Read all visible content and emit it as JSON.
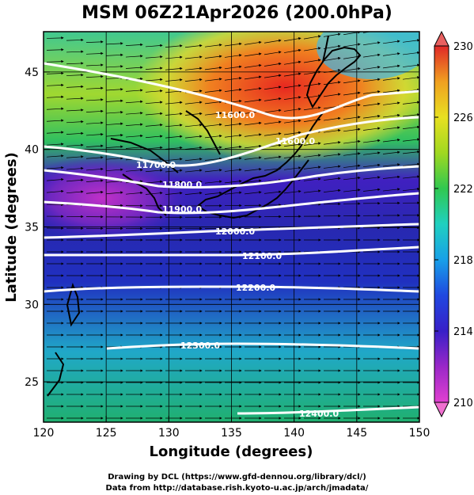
{
  "title": "MSM 06Z21Apr2026 (200.0hPa)",
  "x_axis": {
    "title": "Longitude (degrees)",
    "ticks": [
      120,
      125,
      130,
      135,
      140,
      145,
      150
    ],
    "range": [
      120,
      150
    ]
  },
  "y_axis": {
    "title": "Latitude  (degrees)",
    "ticks": [
      25,
      30,
      35,
      40,
      45
    ],
    "range": [
      22.4,
      47.6
    ]
  },
  "colorbar": {
    "ticks": [
      210,
      214,
      218,
      222,
      226,
      230
    ],
    "range": [
      210,
      230
    ],
    "colors": [
      "#e040d0",
      "#9a28c8",
      "#3820c8",
      "#2048e0",
      "#18a0e8",
      "#20d0c0",
      "#30c850",
      "#a0d820",
      "#e8e020",
      "#f0a020",
      "#e85030",
      "#e02828"
    ]
  },
  "contours": [
    {
      "label": "11600.0"
    },
    {
      "label": "11700.0"
    },
    {
      "label": "11800.0"
    },
    {
      "label": "11900.0"
    },
    {
      "label": "12000.0"
    },
    {
      "label": "12100.0"
    },
    {
      "label": "12200.0"
    },
    {
      "label": "12300.0"
    },
    {
      "label": "12400.0"
    }
  ],
  "credits": {
    "line1": "Drawing by DCL (https://www.gfd-dennou.org/library/dcl/)",
    "line2": "Data from http://database.rish.kyoto-u.ac.jp/arch/jmadata/"
  }
}
